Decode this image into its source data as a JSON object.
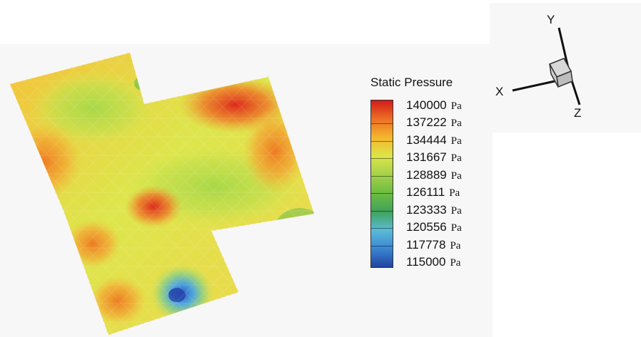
{
  "legend": {
    "title": "Static Pressure",
    "unit": "Pa",
    "levels": [
      "140000",
      "137222",
      "134444",
      "131667",
      "128889",
      "126111",
      "123333",
      "120556",
      "117778",
      "115000"
    ],
    "colors": [
      "#d11b1b",
      "#ec6f24",
      "#f4b62c",
      "#dde548",
      "#a6d14a",
      "#6cbd40",
      "#3fa35a",
      "#5bbbd6",
      "#3a86d2",
      "#2244a0"
    ]
  },
  "axes": {
    "x_label": "X",
    "y_label": "Y",
    "z_label": "Z"
  }
}
